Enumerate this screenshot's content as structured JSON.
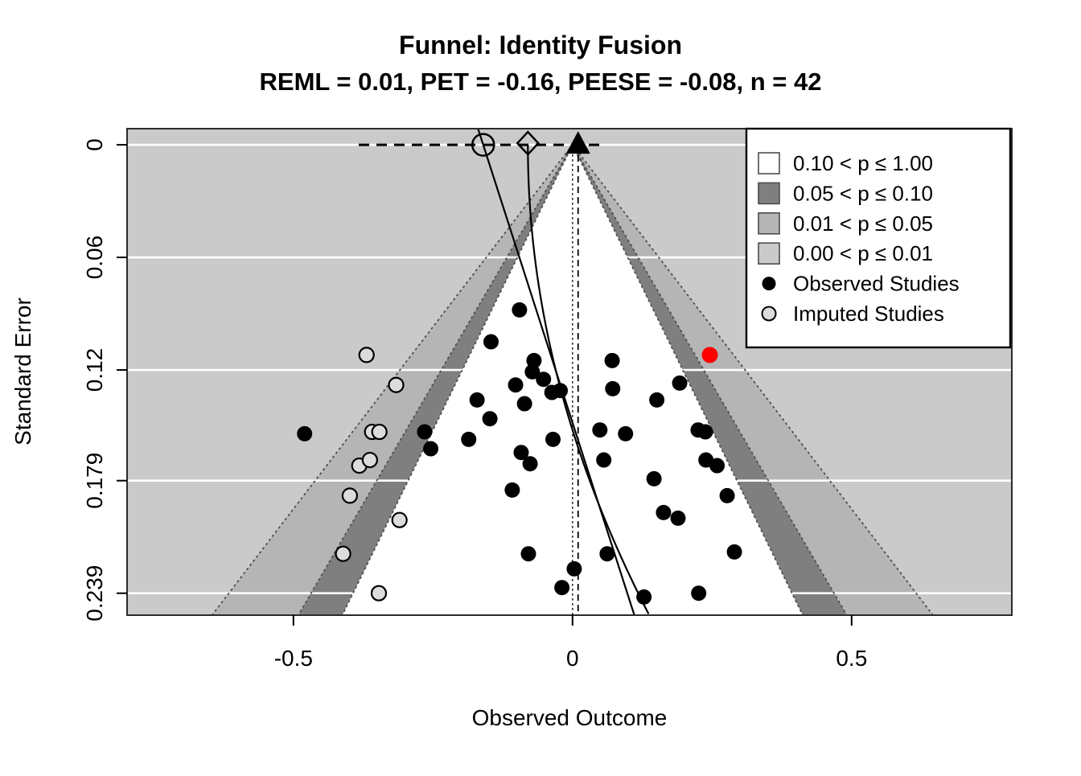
{
  "figure": {
    "title": "Funnel: Identity Fusion",
    "subtitle": "REML = 0.01,  PET = -0.16,  PEESE = -0.08,  n = 42"
  },
  "stats": {
    "reml": 0.01,
    "pet": -0.16,
    "peese": -0.08,
    "n": 42
  },
  "chart_data": {
    "type": "scatter",
    "title": "Funnel: Identity Fusion",
    "subtitle": "REML = 0.01,  PET = -0.16,  PEESE = -0.08,  n = 42",
    "xlabel": "Observed Outcome",
    "ylabel": "Standard Error",
    "xlim": [
      -0.798,
      0.787
    ],
    "ylim_se": [
      -0.0086,
      0.2507
    ],
    "x_ticks": [
      -0.5,
      0,
      0.5
    ],
    "x_tick_labels": [
      "-0.5",
      "0",
      "0.5"
    ],
    "y_ticks": [
      0,
      0.06,
      0.12,
      0.179,
      0.239
    ],
    "y_tick_labels": [
      "0",
      "0.06",
      "0.12",
      "0.179",
      "0.239"
    ],
    "grid": true,
    "legend_position": "top-right",
    "contours": {
      "center": 0,
      "z_white": 1.645,
      "z_dark": 1.96,
      "z_outer": 2.576
    },
    "colors": {
      "plot_bg_p001": "#cacaca",
      "band_p0105": "#b5b5b5",
      "band_p0510": "#7f7f7f",
      "funnel_white": "#ffffff",
      "observed": "#000000",
      "highlight": "#ff0000",
      "imputed_fill": "#dcdcdc",
      "contour_line": "#4d4d4d"
    },
    "reference_lines": {
      "center_dotted_x": 0,
      "reml_dashed_x": 0.01,
      "zero_se_dash_span": [
        -0.383,
        0.053
      ]
    },
    "regression_lines": {
      "pet": {
        "intercept": -0.16,
        "slope_per_se": 1.08
      },
      "peese": {
        "intercept": -0.08,
        "quad_per_se2": 3.46
      }
    },
    "estimate_markers": {
      "reml_triangle_x": 0.01,
      "pet_circle_x": -0.16,
      "peese_diamond_x": -0.08
    },
    "series": [
      {
        "name": "Observed Studies",
        "marker": "filled-circle",
        "color": "#000000",
        "points": [
          [
            -0.48,
            0.154
          ],
          [
            -0.265,
            0.153
          ],
          [
            -0.254,
            0.162
          ],
          [
            -0.186,
            0.157
          ],
          [
            -0.171,
            0.136
          ],
          [
            -0.148,
            0.146
          ],
          [
            -0.146,
            0.105
          ],
          [
            -0.102,
            0.128
          ],
          [
            -0.095,
            0.088
          ],
          [
            -0.092,
            0.164
          ],
          [
            -0.086,
            0.138
          ],
          [
            -0.076,
            0.17
          ],
          [
            -0.072,
            0.121
          ],
          [
            -0.069,
            0.115
          ],
          [
            -0.052,
            0.125
          ],
          [
            -0.037,
            0.132
          ],
          [
            -0.022,
            0.131
          ],
          [
            -0.035,
            0.157
          ],
          [
            -0.108,
            0.184
          ],
          [
            -0.079,
            0.218
          ],
          [
            -0.019,
            0.236
          ],
          [
            0.003,
            0.226
          ],
          [
            0.062,
            0.218
          ],
          [
            0.128,
            0.241
          ],
          [
            0.146,
            0.178
          ],
          [
            0.163,
            0.196
          ],
          [
            0.189,
            0.199
          ],
          [
            0.226,
            0.239
          ],
          [
            0.277,
            0.187
          ],
          [
            0.29,
            0.217
          ],
          [
            0.049,
            0.152
          ],
          [
            0.056,
            0.168
          ],
          [
            0.071,
            0.115
          ],
          [
            0.072,
            0.13
          ],
          [
            0.095,
            0.154
          ],
          [
            0.151,
            0.136
          ],
          [
            0.192,
            0.127
          ],
          [
            0.225,
            0.152
          ],
          [
            0.238,
            0.153
          ],
          [
            0.239,
            0.168
          ],
          [
            0.259,
            0.171
          ]
        ]
      },
      {
        "name": "Highlighted Study",
        "marker": "filled-circle",
        "color": "#ff0000",
        "points": [
          [
            0.246,
            0.112
          ]
        ]
      },
      {
        "name": "Imputed Studies",
        "marker": "open-circle",
        "color": "#dcdcdc",
        "points": [
          [
            -0.369,
            0.112
          ],
          [
            -0.316,
            0.128
          ],
          [
            -0.359,
            0.153
          ],
          [
            -0.346,
            0.153
          ],
          [
            -0.382,
            0.171
          ],
          [
            -0.363,
            0.168
          ],
          [
            -0.399,
            0.187
          ],
          [
            -0.31,
            0.2
          ],
          [
            -0.411,
            0.218
          ],
          [
            -0.347,
            0.239
          ]
        ]
      }
    ],
    "legend": {
      "items": [
        {
          "type": "square",
          "fill": "#ffffff",
          "stroke": "#4d4d4d",
          "label": "0.10 < p ≤ 1.00"
        },
        {
          "type": "square",
          "fill": "#7f7f7f",
          "stroke": "#4d4d4d",
          "label": "0.05 < p ≤ 0.10"
        },
        {
          "type": "square",
          "fill": "#b5b5b5",
          "stroke": "#4d4d4d",
          "label": "0.01 < p ≤ 0.05"
        },
        {
          "type": "square",
          "fill": "#cacaca",
          "stroke": "#4d4d4d",
          "label": "0.00 < p ≤ 0.01"
        },
        {
          "type": "dot",
          "fill": "#000000",
          "stroke": "none",
          "label": "Observed Studies"
        },
        {
          "type": "dot",
          "fill": "#dcdcdc",
          "stroke": "#000000",
          "label": "Imputed Studies"
        }
      ]
    }
  }
}
